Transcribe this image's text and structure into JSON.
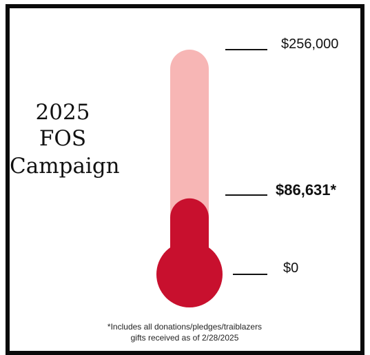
{
  "title": {
    "line1": "2025",
    "line2": "FOS",
    "line3": "Campaign"
  },
  "chart_data": {
    "type": "thermometer",
    "goal": 256000,
    "raised": 86631,
    "min": 0,
    "labels": {
      "goal": "$256,000",
      "raised": "$86,631*",
      "min": "$0"
    },
    "colors": {
      "empty": "#f7b6b5",
      "filled": "#c8102e",
      "tick": "#111111"
    }
  },
  "footnote": {
    "line1": "*Includes all donations/pledges/traiblazers",
    "line2": "gifts received as of 2/28/2025"
  }
}
